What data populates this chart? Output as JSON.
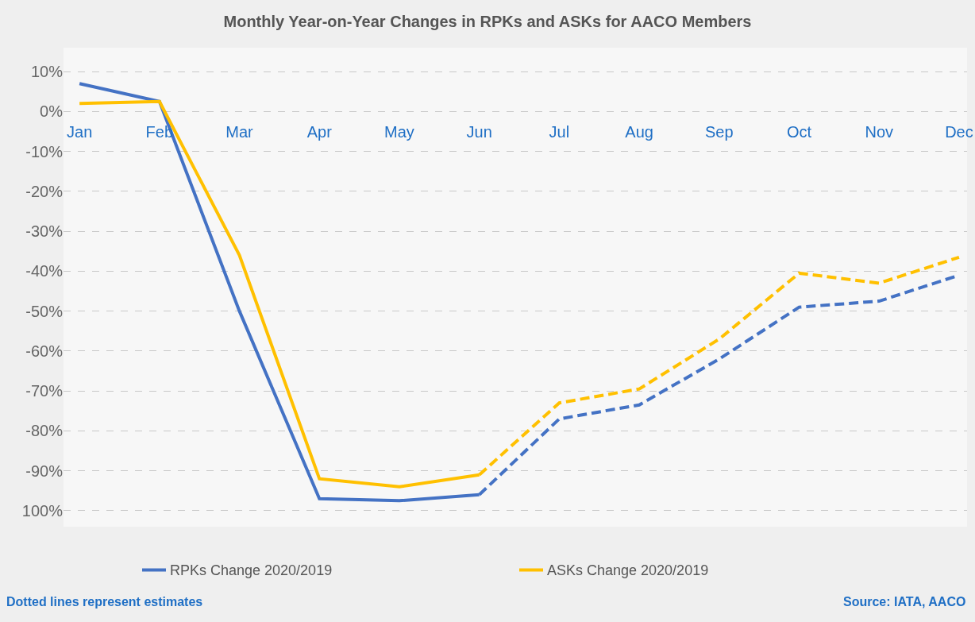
{
  "chart_data": {
    "type": "line",
    "title": "Monthly Year-on-Year Changes in RPKs and ASKs for AACO Members",
    "categories": [
      "Jan",
      "Feb",
      "Mar",
      "Apr",
      "May",
      "Jun",
      "Jul",
      "Aug",
      "Sep",
      "Oct",
      "Nov",
      "Dec"
    ],
    "series": [
      {
        "name": "RPKs Change 2020/2019",
        "color": "#4472c4",
        "line_style": "solid",
        "values": [
          7,
          2.5,
          -50,
          -97,
          -97.5,
          -96,
          null,
          null,
          null,
          null,
          null,
          null
        ]
      },
      {
        "name": "ASKs Change 2020/2019",
        "color": "#ffc000",
        "line_style": "solid",
        "values": [
          2,
          2.5,
          -36,
          -92,
          -94,
          -91,
          null,
          null,
          null,
          null,
          null,
          null
        ]
      },
      {
        "color": "#4472c4",
        "line_style": "dashed",
        "values": [
          null,
          null,
          null,
          null,
          null,
          -96,
          -77,
          -73.5,
          -62,
          -49,
          -47.5,
          -41
        ]
      },
      {
        "color": "#ffc000",
        "line_style": "dashed",
        "values": [
          null,
          null,
          null,
          null,
          null,
          -91,
          -73,
          -69.5,
          -57,
          -40.5,
          -43,
          -36.5
        ]
      }
    ],
    "ylim": [
      -104,
      16
    ],
    "yticks": [
      {
        "value": 10,
        "label": "10%"
      },
      {
        "value": 0,
        "label": "0%"
      },
      {
        "value": -10,
        "label": "-10%"
      },
      {
        "value": -20,
        "label": "-20%"
      },
      {
        "value": -30,
        "label": "-30%"
      },
      {
        "value": -40,
        "label": "-40%"
      },
      {
        "value": -50,
        "label": "-50%"
      },
      {
        "value": -60,
        "label": "-60%"
      },
      {
        "value": -70,
        "label": "-70%"
      },
      {
        "value": -80,
        "label": "-80%"
      },
      {
        "value": -90,
        "label": "-90%"
      },
      {
        "value": -100,
        "label": "100%"
      }
    ],
    "grid": "y",
    "legend": "bottom",
    "marker": "none",
    "annotations": [
      "Dotted lines represent estimates",
      "Source: IATA, AACO"
    ]
  }
}
